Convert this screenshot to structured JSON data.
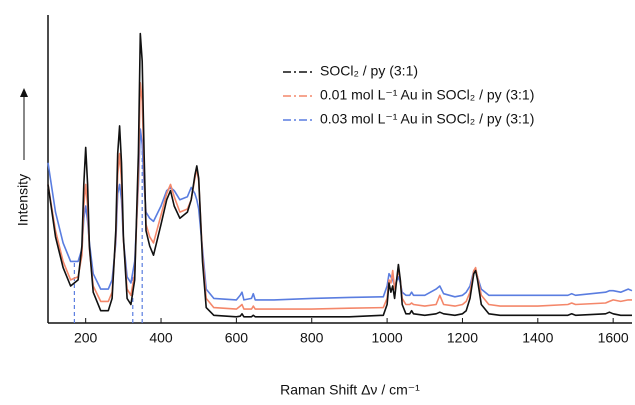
{
  "chart_data": {
    "type": "line",
    "xlabel": "Raman Shift Δν / cm⁻¹",
    "ylabel": "Intensity",
    "x": [
      100,
      120,
      140,
      160,
      180,
      190,
      195,
      200,
      205,
      210,
      220,
      240,
      260,
      270,
      280,
      285,
      290,
      295,
      300,
      310,
      320,
      330,
      340,
      345,
      350,
      355,
      360,
      370,
      380,
      400,
      415,
      425,
      435,
      450,
      470,
      480,
      490,
      495,
      500,
      510,
      520,
      540,
      600,
      610,
      615,
      620,
      640,
      645,
      650,
      700,
      800,
      900,
      990,
      1000,
      1005,
      1010,
      1015,
      1020,
      1030,
      1035,
      1040,
      1050,
      1060,
      1065,
      1070,
      1100,
      1130,
      1140,
      1150,
      1180,
      1200,
      1210,
      1220,
      1230,
      1235,
      1240,
      1250,
      1270,
      1300,
      1400,
      1480,
      1490,
      1500,
      1580,
      1590,
      1600,
      1620,
      1640,
      1650
    ],
    "series": [
      {
        "name": "SOCl₂ / py (3:1)",
        "color": "#111111",
        "values": [
          45,
          28,
          18,
          12,
          14,
          25,
          45,
          57,
          45,
          25,
          10,
          4,
          4,
          8,
          30,
          55,
          64,
          52,
          28,
          8,
          6,
          14,
          55,
          94,
          85,
          55,
          30,
          25,
          22,
          32,
          40,
          43,
          38,
          34,
          36,
          40,
          48,
          51,
          47,
          20,
          5,
          2.5,
          2,
          2.2,
          3,
          2,
          2,
          2.5,
          2,
          2,
          2,
          2,
          2.5,
          6,
          13,
          10,
          12,
          8,
          19,
          14,
          6,
          3,
          3,
          4,
          3,
          2.5,
          3,
          3.5,
          3,
          2.5,
          3,
          4,
          8,
          16,
          17,
          14,
          6,
          3,
          2.5,
          2.5,
          2.5,
          3,
          2.5,
          3,
          3.5,
          3,
          2.5,
          2.5,
          2.5
        ]
      },
      {
        "name": "0.01 mol L⁻¹ Au in SOCl₂ / py (3:1)",
        "color": "#f4876a",
        "values": [
          45,
          30,
          20,
          14,
          15,
          22,
          38,
          45,
          38,
          24,
          12,
          7,
          7,
          10,
          28,
          48,
          55,
          46,
          27,
          11,
          9,
          16,
          48,
          78,
          72,
          50,
          32,
          28,
          26,
          35,
          42,
          45,
          41,
          36,
          37,
          40,
          47,
          50,
          46,
          22,
          8,
          5,
          4.5,
          5.5,
          6,
          4.5,
          4.5,
          5.5,
          4.5,
          4.5,
          4.5,
          4.8,
          5,
          8,
          14,
          13,
          17,
          11,
          17,
          14,
          8,
          6,
          6,
          6.5,
          6,
          5.5,
          6,
          9,
          6,
          5.5,
          6,
          7,
          10,
          17,
          18,
          15,
          9,
          6,
          5.5,
          5.5,
          6,
          6.5,
          6,
          6.5,
          7,
          7.5,
          7,
          7.5,
          7.5
        ]
      },
      {
        "name": "0.03 mol L⁻¹ Au in SOCl₂ / py (3:1)",
        "color": "#5a7de0",
        "values": [
          52,
          36,
          26,
          20,
          20,
          24,
          34,
          38,
          33,
          26,
          16,
          11,
          11,
          14,
          26,
          42,
          45,
          40,
          27,
          15,
          13,
          20,
          45,
          63,
          58,
          45,
          36,
          34,
          33,
          38,
          43,
          44,
          43,
          40,
          41,
          44,
          42,
          40,
          37,
          24,
          11,
          8,
          7.5,
          9,
          10,
          7.5,
          8,
          9.5,
          7.5,
          7.5,
          8,
          8.3,
          8.5,
          12,
          16,
          15,
          14,
          12,
          15,
          13,
          10,
          9,
          9,
          10,
          9,
          9,
          11,
          12,
          9.5,
          8.5,
          9,
          10,
          12,
          17,
          17,
          15,
          11,
          9,
          9,
          9,
          9,
          9.5,
          9,
          10,
          10.5,
          10.5,
          10,
          11,
          10.5
        ]
      }
    ],
    "vlines": [
      170,
      325,
      350
    ],
    "vline_color": "#5a7de0",
    "xlim": [
      100,
      1650
    ],
    "ylim": [
      0,
      100
    ],
    "xticks": [
      200,
      400,
      600,
      800,
      1000,
      1200,
      1400,
      1600
    ]
  }
}
